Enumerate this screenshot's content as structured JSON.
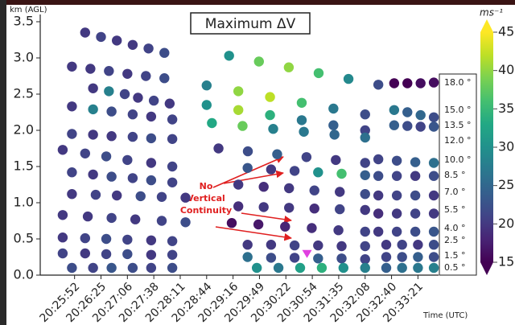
{
  "chart_data": {
    "type": "scatter",
    "title": "Maximum ΔV",
    "ylabel": "km (AGL)",
    "xlabel": "Time (UTC)",
    "colormap": "viridis",
    "clim": [
      15,
      45
    ],
    "colorbar_label": "ms⁻¹",
    "colorbar_ticks": [
      15,
      20,
      25,
      30,
      35,
      40,
      45
    ],
    "xlim": [
      -1.3,
      13.78
    ],
    "ylim": [
      0,
      3.6
    ],
    "xticks": [
      {
        "value": 0,
        "label": "20:25:52"
      },
      {
        "value": 1,
        "label": "20:26:25"
      },
      {
        "value": 2,
        "label": "20:27:06"
      },
      {
        "value": 3,
        "label": "20:27:38"
      },
      {
        "value": 4,
        "label": "20:28:11"
      },
      {
        "value": 5,
        "label": "20:28:44"
      },
      {
        "value": 6,
        "label": "20:29:16"
      },
      {
        "value": 7,
        "label": "20:29:49"
      },
      {
        "value": 8,
        "label": "20:30:22"
      },
      {
        "value": 9,
        "label": "20:30:54"
      },
      {
        "value": 10,
        "label": "20:31:35"
      },
      {
        "value": 11,
        "label": "20:32:08"
      },
      {
        "value": 12,
        "label": "20:32:40"
      },
      {
        "value": 13,
        "label": "20:33:21"
      }
    ],
    "yticks": [
      {
        "value": 0,
        "label": "0.0"
      },
      0.5,
      {
        "value": 1,
        "label": "1.0"
      },
      1.5,
      {
        "value": 2,
        "label": "2.0"
      },
      2.5,
      {
        "value": 3,
        "label": "3.0"
      },
      3.5
    ],
    "elevation_labels": [
      "18.0 °",
      "15.0 °",
      "13.5 °",
      "12.0 °",
      "10.0 °",
      "8.5 °",
      "7.0 °",
      "5.5 °",
      "4.0 °",
      "2.5 °",
      "1.5 °",
      "0.5 °"
    ],
    "annotation_lines": [
      "No",
      "Vertical",
      "Continuity"
    ],
    "marker": {
      "x": 8.8,
      "y": 0.28,
      "color": "#e040e0"
    },
    "series": [
      {
        "x": [
          0.4,
          1.0,
          1.6,
          2.2,
          2.8,
          3.4
        ],
        "y": [
          3.35,
          3.29,
          3.24,
          3.18,
          3.13,
          3.07
        ],
        "values": [
          20,
          21,
          20,
          20,
          21,
          22
        ]
      },
      {
        "x": [
          -0.1,
          0.6,
          1.3,
          2.0,
          2.7,
          3.4
        ],
        "y": [
          2.88,
          2.85,
          2.82,
          2.78,
          2.75,
          2.72
        ],
        "values": [
          20,
          20,
          21,
          20,
          21,
          22
        ]
      },
      {
        "x": [
          0.7,
          1.3,
          1.9,
          2.4,
          3.0,
          3.6
        ],
        "y": [
          2.58,
          2.54,
          2.5,
          2.45,
          2.41,
          2.37
        ],
        "values": [
          20,
          28,
          21,
          20,
          21,
          20
        ]
      },
      {
        "x": [
          -0.1,
          0.7,
          1.4,
          2.2,
          2.9,
          3.7
        ],
        "y": [
          2.33,
          2.29,
          2.26,
          2.22,
          2.19,
          2.15
        ],
        "values": [
          20,
          28,
          22,
          21,
          20,
          21
        ]
      },
      {
        "x": [
          -0.1,
          0.7,
          1.4,
          2.2,
          2.9,
          3.7
        ],
        "y": [
          1.95,
          1.94,
          1.92,
          1.91,
          1.89,
          1.88
        ],
        "values": [
          21,
          20,
          20,
          21,
          22,
          21
        ]
      },
      {
        "x": [
          -0.45,
          0.4,
          1.2,
          2.0,
          2.9,
          3.7
        ],
        "y": [
          1.73,
          1.68,
          1.64,
          1.59,
          1.55,
          1.5
        ],
        "values": [
          20,
          21,
          22,
          21,
          20,
          21
        ]
      },
      {
        "x": [
          -0.1,
          0.7,
          1.4,
          2.2,
          2.9,
          3.7
        ],
        "y": [
          1.42,
          1.39,
          1.36,
          1.34,
          1.31,
          1.28
        ],
        "values": [
          21,
          20,
          22,
          21,
          22,
          21
        ]
      },
      {
        "x": [
          -0.1,
          0.8,
          1.6,
          2.5,
          3.3,
          4.2
        ],
        "y": [
          1.12,
          1.11,
          1.1,
          1.09,
          1.08,
          1.07
        ],
        "values": [
          20,
          21,
          20,
          22,
          21,
          20
        ]
      },
      {
        "x": [
          -0.45,
          0.5,
          1.4,
          2.3,
          3.3,
          4.2
        ],
        "y": [
          0.83,
          0.81,
          0.79,
          0.77,
          0.75,
          0.73
        ],
        "values": [
          20,
          20,
          21,
          20,
          21,
          22
        ]
      },
      {
        "x": [
          -0.45,
          0.4,
          1.2,
          2.0,
          2.9,
          3.7
        ],
        "y": [
          0.52,
          0.51,
          0.5,
          0.49,
          0.48,
          0.47
        ],
        "values": [
          20,
          21,
          22,
          21,
          20,
          21
        ]
      },
      {
        "x": [
          -0.45,
          0.4,
          1.2,
          2.0,
          2.9,
          3.7
        ],
        "y": [
          0.3,
          0.3,
          0.29,
          0.29,
          0.28,
          0.28
        ],
        "values": [
          21,
          20,
          21,
          22,
          20,
          21
        ]
      },
      {
        "x": [
          -0.1,
          0.7,
          1.4,
          2.2,
          2.9,
          3.7
        ],
        "y": [
          0.1,
          0.1,
          0.1,
          0.1,
          0.1,
          0.1
        ],
        "values": [
          22,
          21,
          23,
          22,
          21,
          22
        ]
      },
      {
        "x": [
          5.85,
          6.98,
          8.11,
          9.24,
          10.37,
          11.5
        ],
        "y": [
          3.03,
          2.95,
          2.87,
          2.79,
          2.71,
          2.63
        ],
        "values": [
          30,
          38,
          40,
          36,
          29,
          22
        ]
      },
      {
        "x": [
          5.0,
          6.2,
          7.4,
          8.6,
          9.8,
          11.0
        ],
        "y": [
          2.62,
          2.54,
          2.46,
          2.38,
          2.3,
          2.22
        ],
        "values": [
          28,
          40,
          42,
          36,
          27,
          22
        ]
      },
      {
        "x": [
          5.0,
          6.2,
          7.4,
          8.6,
          9.8,
          11.0
        ],
        "y": [
          2.35,
          2.28,
          2.21,
          2.14,
          2.07,
          2.0
        ],
        "values": [
          30,
          41,
          34,
          27,
          24,
          21
        ]
      },
      {
        "x": [
          5.2,
          6.36,
          7.52,
          8.68,
          9.84,
          11.0
        ],
        "y": [
          2.1,
          2.06,
          2.02,
          1.98,
          1.94,
          1.9
        ],
        "values": [
          33,
          38,
          28,
          27,
          25,
          26
        ]
      },
      {
        "x": [
          5.45,
          6.56,
          7.67,
          8.78,
          9.89,
          11.0
        ],
        "y": [
          1.75,
          1.71,
          1.67,
          1.63,
          1.59,
          1.55
        ],
        "values": [
          20,
          22,
          24,
          21,
          20,
          21
        ]
      },
      {
        "x": [
          6.55,
          7.44,
          8.33,
          9.22,
          10.11,
          11.0
        ],
        "y": [
          1.48,
          1.46,
          1.44,
          1.42,
          1.4,
          1.38
        ],
        "values": [
          23,
          20,
          21,
          30,
          36,
          24
        ]
      },
      {
        "x": [
          6.2,
          7.16,
          8.12,
          9.08,
          10.04,
          11.0
        ],
        "y": [
          1.25,
          1.22,
          1.2,
          1.17,
          1.15,
          1.12
        ],
        "values": [
          20,
          19,
          20,
          21,
          20,
          22
        ]
      },
      {
        "x": [
          6.2,
          7.16,
          8.12,
          9.08,
          10.04,
          11.0
        ],
        "y": [
          0.95,
          0.94,
          0.93,
          0.92,
          0.91,
          0.9
        ],
        "values": [
          19,
          20,
          20,
          19,
          21,
          20
        ]
      },
      {
        "x": [
          5.95,
          6.96,
          7.97,
          8.98,
          9.99,
          11.0
        ],
        "y": [
          0.72,
          0.7,
          0.67,
          0.65,
          0.62,
          0.6
        ],
        "values": [
          16,
          17,
          18,
          19,
          20,
          21
        ]
      },
      {
        "x": [
          6.55,
          7.44,
          8.33,
          9.22,
          10.11,
          11.0
        ],
        "y": [
          0.42,
          0.42,
          0.41,
          0.41,
          0.4,
          0.4
        ],
        "values": [
          20,
          20,
          21,
          20,
          20,
          21
        ]
      },
      {
        "x": [
          6.55,
          7.44,
          8.33,
          9.22,
          10.11,
          11.0
        ],
        "y": [
          0.25,
          0.24,
          0.24,
          0.23,
          0.23,
          0.22
        ],
        "values": [
          26,
          22,
          21,
          24,
          22,
          21
        ]
      },
      {
        "x": [
          6.9,
          7.72,
          8.54,
          9.36,
          10.18,
          11.0
        ],
        "y": [
          0.1,
          0.1,
          0.1,
          0.1,
          0.1,
          0.1
        ],
        "values": [
          30,
          27,
          32,
          34,
          30,
          28
        ]
      },
      {
        "x": [
          12.1,
          12.6,
          13.1,
          13.6
        ],
        "y": [
          2.65,
          2.65,
          2.65,
          2.66
        ],
        "values": [
          15,
          15,
          16,
          16
        ]
      },
      {
        "x": [
          12.1,
          12.6,
          13.1,
          13.6
        ],
        "y": [
          2.28,
          2.25,
          2.21,
          2.18
        ],
        "values": [
          27,
          24,
          25,
          22
        ]
      },
      {
        "x": [
          12.1,
          12.6,
          13.1,
          13.6
        ],
        "y": [
          2.07,
          2.06,
          2.05,
          2.05
        ],
        "values": [
          24,
          22,
          21,
          23
        ]
      },
      {
        "x": [
          11.5,
          12.2,
          12.9,
          13.6
        ],
        "y": [
          1.6,
          1.58,
          1.56,
          1.55
        ],
        "values": [
          21,
          22,
          24,
          26
        ]
      },
      {
        "x": [
          11.5,
          12.2,
          12.9,
          13.6
        ],
        "y": [
          1.37,
          1.37,
          1.37,
          1.37
        ],
        "values": [
          22,
          21,
          20,
          22
        ]
      },
      {
        "x": [
          11.5,
          12.2,
          12.9,
          13.6
        ],
        "y": [
          1.1,
          1.1,
          1.1,
          1.1
        ],
        "values": [
          20,
          21,
          22,
          20
        ]
      },
      {
        "x": [
          11.5,
          12.2,
          12.9,
          13.6
        ],
        "y": [
          0.85,
          0.85,
          0.85,
          0.85
        ],
        "values": [
          19,
          20,
          21,
          20
        ]
      },
      {
        "x": [
          11.5,
          12.2,
          12.9,
          13.6
        ],
        "y": [
          0.6,
          0.6,
          0.6,
          0.6
        ],
        "values": [
          20,
          21,
          22,
          23
        ]
      },
      {
        "x": [
          11.8,
          12.4,
          13.0,
          13.6
        ],
        "y": [
          0.42,
          0.42,
          0.42,
          0.42
        ],
        "values": [
          20,
          21,
          20,
          22
        ]
      },
      {
        "x": [
          11.8,
          12.4,
          13.0,
          13.6
        ],
        "y": [
          0.25,
          0.25,
          0.25,
          0.25
        ],
        "values": [
          21,
          22,
          24,
          22
        ]
      },
      {
        "x": [
          11.8,
          12.4,
          13.0,
          13.6
        ],
        "y": [
          0.1,
          0.1,
          0.1,
          0.1
        ],
        "values": [
          24,
          26,
          27,
          28
        ]
      }
    ]
  }
}
